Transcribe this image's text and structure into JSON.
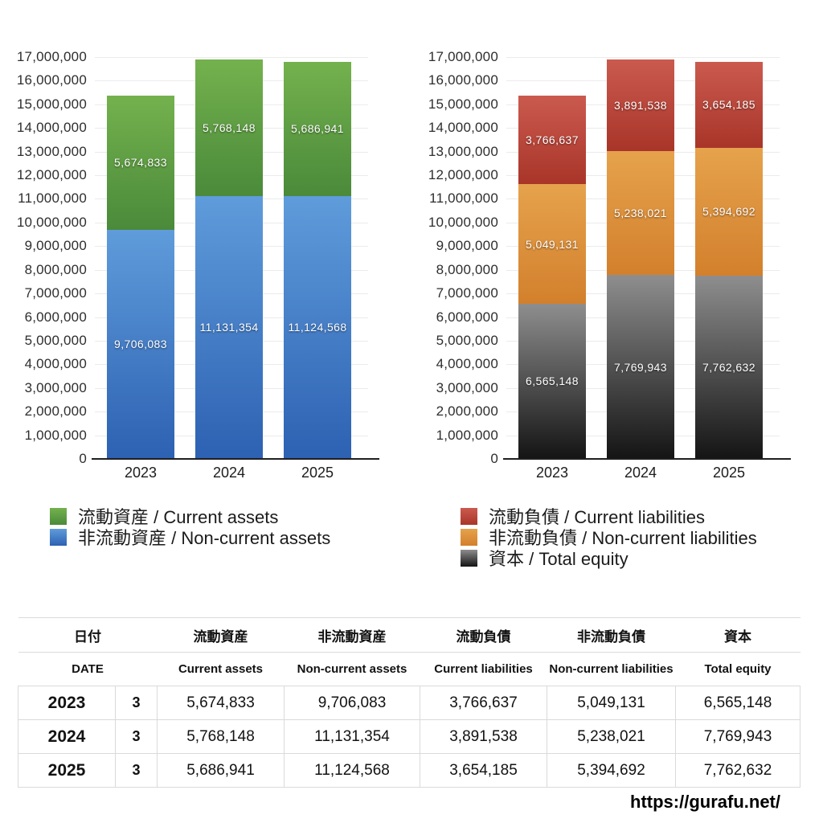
{
  "chart_data": [
    {
      "id": "assets",
      "type": "bar",
      "subtype": "stacked",
      "categories": [
        "2023",
        "2024",
        "2025"
      ],
      "series": [
        {
          "name_ja": "流動資産",
          "name_en": "Current assets",
          "legend_label": "流動資産 / Current assets",
          "values": [
            5674833,
            5768148,
            5686941
          ],
          "data_labels": [
            "5,674,833",
            "5,768,148",
            "5,686,941"
          ],
          "color_top": "#74b14e",
          "color_bottom": "#4a8a3a",
          "stack_position": "top"
        },
        {
          "name_ja": "非流動資産",
          "name_en": "Non-current assets",
          "legend_label": "非流動資産 / Non-current assets",
          "values": [
            9706083,
            11131354,
            11124568
          ],
          "data_labels": [
            "9,706,083",
            "11,131,354",
            "11,124,568"
          ],
          "color_top": "#5f9cdb",
          "color_bottom": "#2d61b2",
          "stack_position": "bottom"
        }
      ],
      "ylim": [
        0,
        17000000
      ],
      "ytick_step": 1000000,
      "ytick_labels": [
        "0",
        "1,000,000",
        "2,000,000",
        "3,000,000",
        "4,000,000",
        "5,000,000",
        "6,000,000",
        "7,000,000",
        "8,000,000",
        "9,000,000",
        "10,000,000",
        "11,000,000",
        "12,000,000",
        "13,000,000",
        "14,000,000",
        "15,000,000",
        "16,000,000",
        "17,000,000"
      ],
      "grid": "horizontal",
      "legend_position": "bottom-left"
    },
    {
      "id": "liabilities",
      "type": "bar",
      "subtype": "stacked",
      "categories": [
        "2023",
        "2024",
        "2025"
      ],
      "series": [
        {
          "name_ja": "流動負債",
          "name_en": "Current liabilities",
          "legend_label": "流動負債 / Current liabilities",
          "values": [
            3766637,
            3891538,
            3654185
          ],
          "data_labels": [
            "3,766,637",
            "3,891,538",
            "3,654,185"
          ],
          "color_top": "#cb5a4e",
          "color_bottom": "#a93529",
          "stack_position": "top"
        },
        {
          "name_ja": "非流動負債",
          "name_en": "Non-current liabilities",
          "legend_label": "非流動負債 / Non-current liabilities",
          "values": [
            5049131,
            5238021,
            5394692
          ],
          "data_labels": [
            "5,049,131",
            "5,238,021",
            "5,394,692"
          ],
          "color_top": "#e6a24c",
          "color_bottom": "#d3802c",
          "stack_position": "middle"
        },
        {
          "name_ja": "資本",
          "name_en": "Total equity",
          "legend_label": "資本 / Total equity",
          "values": [
            6565148,
            7769943,
            7762632
          ],
          "data_labels": [
            "6,565,148",
            "7,769,943",
            "7,762,632"
          ],
          "color_top": "#8e8e8e",
          "color_bottom": "#141414",
          "stack_position": "bottom"
        }
      ],
      "ylim": [
        0,
        17000000
      ],
      "ytick_step": 1000000,
      "ytick_labels": [
        "0",
        "1,000,000",
        "2,000,000",
        "3,000,000",
        "4,000,000",
        "5,000,000",
        "6,000,000",
        "7,000,000",
        "8,000,000",
        "9,000,000",
        "10,000,000",
        "11,000,000",
        "12,000,000",
        "13,000,000",
        "14,000,000",
        "15,000,000",
        "16,000,000",
        "17,000,000"
      ],
      "grid": "horizontal",
      "legend_position": "bottom-left"
    }
  ],
  "table": {
    "header_ja": [
      "日付",
      "流動資産",
      "非流動資産",
      "流動負債",
      "非流動負債",
      "資本"
    ],
    "header_en": [
      "DATE",
      "Current assets",
      "Non-current assets",
      "Current liabilities",
      "Non-current liabilities",
      "Total equity"
    ],
    "rows": [
      {
        "year": "2023",
        "month": "3",
        "values": [
          "5,674,833",
          "9,706,083",
          "3,766,637",
          "5,049,131",
          "6,565,148"
        ]
      },
      {
        "year": "2024",
        "month": "3",
        "values": [
          "5,768,148",
          "11,131,354",
          "3,891,538",
          "5,238,021",
          "7,769,943"
        ]
      },
      {
        "year": "2025",
        "month": "3",
        "values": [
          "5,686,941",
          "11,124,568",
          "3,654,185",
          "5,394,692",
          "7,762,632"
        ]
      }
    ]
  },
  "footer": {
    "url": "https://gurafu.net/"
  }
}
